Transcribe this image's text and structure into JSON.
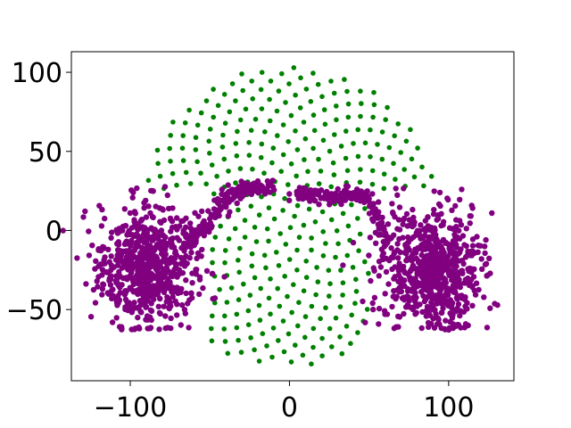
{
  "chart_data": {
    "type": "scatter",
    "title": "",
    "xlabel": "",
    "ylabel": "",
    "xlim": [
      -137,
      141
    ],
    "ylim": [
      -95,
      113
    ],
    "grid": false,
    "legend": "none",
    "x_ticks": [
      -100,
      0,
      100
    ],
    "y_ticks": [
      100,
      50,
      0,
      -50
    ],
    "x_tick_labels": [
      "−100",
      "0",
      "100"
    ],
    "y_tick_labels": [
      "100",
      "50",
      "0",
      "−50"
    ],
    "series": [
      {
        "color": "#008000",
        "pattern": "sunflower disc of evenly spaced points, center (0,10), radius about 95; left and right lower sides occupied by the purple clusters",
        "sample_points": [
          [
            -97,
            48
          ],
          [
            -93,
            54
          ],
          [
            -86,
            62
          ],
          [
            -77,
            78
          ],
          [
            -62,
            90
          ],
          [
            -48,
            96
          ],
          [
            -30,
            103
          ],
          [
            -13,
            102
          ],
          [
            6,
            105
          ],
          [
            28,
            103
          ],
          [
            48,
            96
          ],
          [
            62,
            88
          ],
          [
            77,
            80
          ],
          [
            86,
            64
          ],
          [
            92,
            54
          ],
          [
            97,
            47
          ],
          [
            -71,
            -70
          ],
          [
            -55,
            -79
          ],
          [
            -37,
            -82
          ],
          [
            -18,
            -84
          ],
          [
            0,
            -87
          ],
          [
            18,
            -84
          ],
          [
            33,
            -82
          ],
          [
            52,
            -76
          ],
          [
            66,
            -70
          ],
          [
            75,
            -65
          ],
          [
            0,
            0
          ],
          [
            10,
            10
          ],
          [
            -10,
            20
          ]
        ]
      },
      {
        "color": "#800080",
        "pattern": "two dense blobs centered near (-90,-20) and (90,-25), each about 40 wide, joined by a curved band rising to y about 27 at x = -40..-20 and 20..45",
        "sample_points": [
          [
            -90,
            -20
          ],
          [
            -120,
            -25
          ],
          [
            -60,
            -15
          ],
          [
            -95,
            10
          ],
          [
            -85,
            -60
          ],
          [
            -70,
            -55
          ],
          [
            90,
            -25
          ],
          [
            120,
            -15
          ],
          [
            60,
            -30
          ],
          [
            95,
            25
          ],
          [
            85,
            -60
          ],
          [
            110,
            -50
          ],
          [
            -55,
            -5
          ],
          [
            -45,
            10
          ],
          [
            -35,
            22
          ],
          [
            -25,
            27
          ],
          [
            -15,
            26
          ],
          [
            5,
            23
          ],
          [
            20,
            21
          ],
          [
            35,
            22
          ],
          [
            45,
            24
          ],
          [
            55,
            10
          ],
          [
            60,
            -10
          ]
        ]
      }
    ]
  }
}
